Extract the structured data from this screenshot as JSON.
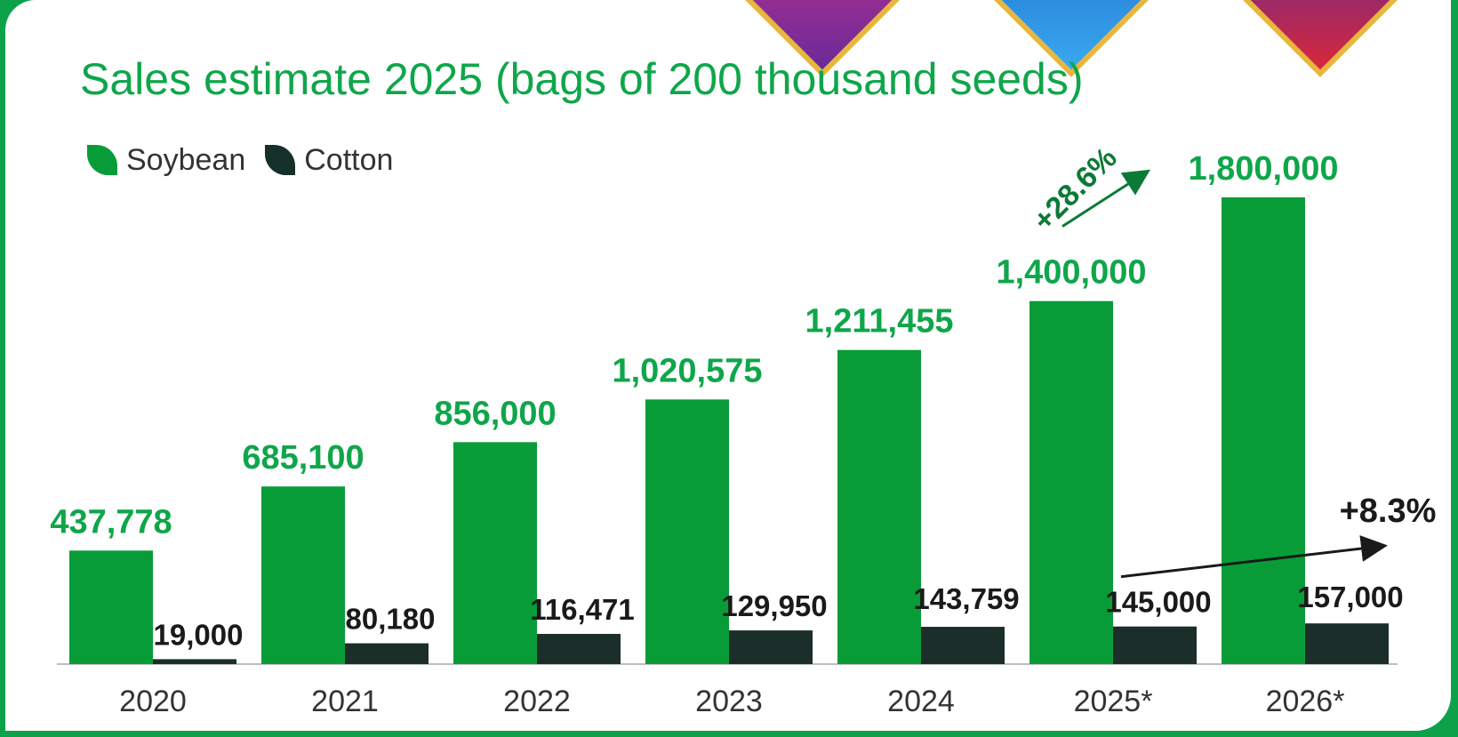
{
  "title": "Sales estimate 2025 (bags of 200 thousand seeds)",
  "legend": [
    {
      "label": "Soybean",
      "color": "#089c38"
    },
    {
      "label": "Cotton",
      "color": "#16302a"
    }
  ],
  "colors": {
    "soybean": "#089c38",
    "cotton": "#1b2e29",
    "soybean_label": "#0fa64a",
    "cotton_label": "#1a1a1a",
    "background": "#0da24a"
  },
  "chart_data": {
    "type": "bar",
    "categories": [
      "2020",
      "2021",
      "2022",
      "2023",
      "2024",
      "2025*",
      "2026*"
    ],
    "series": [
      {
        "name": "Soybean",
        "values": [
          437778,
          685100,
          856000,
          1020575,
          1211455,
          1400000,
          1800000
        ],
        "labels": [
          "437,778",
          "685,100",
          "856,000",
          "1,020,575",
          "1,211,455",
          "1,400,000",
          "1,800,000"
        ]
      },
      {
        "name": "Cotton",
        "values": [
          19000,
          80180,
          116471,
          129950,
          143759,
          145000,
          157000
        ],
        "labels": [
          "19,000",
          "80,180",
          "116,471",
          "129,950",
          "143,759",
          "145,000",
          "157,000"
        ]
      }
    ],
    "annotations": [
      {
        "text": "+28.6%",
        "series": "Soybean"
      },
      {
        "text": "+8.3%",
        "series": "Cotton"
      }
    ],
    "ylim": [
      0,
      1800000
    ],
    "grid": false,
    "legend_position": "top-left"
  }
}
